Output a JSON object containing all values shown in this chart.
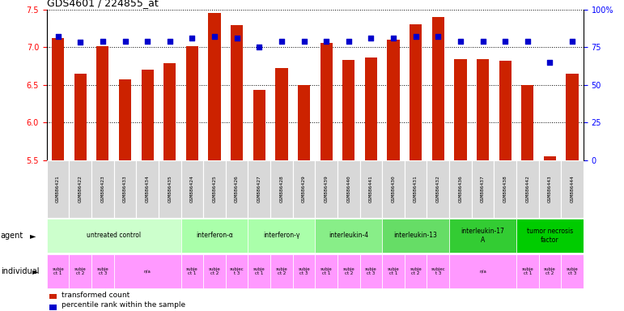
{
  "title": "GDS4601 / 224855_at",
  "samples": [
    "GSM886421",
    "GSM886422",
    "GSM886423",
    "GSM886433",
    "GSM886434",
    "GSM886435",
    "GSM886424",
    "GSM886425",
    "GSM886426",
    "GSM886427",
    "GSM886428",
    "GSM886429",
    "GSM886439",
    "GSM886440",
    "GSM886441",
    "GSM886430",
    "GSM886431",
    "GSM886432",
    "GSM886436",
    "GSM886437",
    "GSM886438",
    "GSM886442",
    "GSM886443",
    "GSM886444"
  ],
  "bar_values": [
    7.12,
    6.65,
    7.01,
    6.57,
    6.7,
    6.79,
    7.01,
    7.45,
    7.29,
    6.43,
    6.72,
    6.5,
    7.05,
    6.83,
    6.86,
    7.1,
    7.3,
    7.4,
    6.84,
    6.84,
    6.82,
    6.5,
    5.55,
    6.65
  ],
  "percentile_values": [
    82,
    78,
    79,
    79,
    79,
    79,
    81,
    82,
    81,
    75,
    79,
    79,
    79,
    79,
    81,
    81,
    82,
    82,
    79,
    79,
    79,
    79,
    65,
    79
  ],
  "bar_color": "#cc2200",
  "dot_color": "#0000cc",
  "ylim_left": [
    5.5,
    7.5
  ],
  "ylim_right": [
    0,
    100
  ],
  "yticks_left": [
    5.5,
    6.0,
    6.5,
    7.0,
    7.5
  ],
  "yticks_right": [
    0,
    25,
    50,
    75,
    100
  ],
  "ytick_labels_right": [
    "0",
    "25",
    "50",
    "75",
    "100%"
  ],
  "groups": [
    {
      "label": "untreated control",
      "start": 0,
      "end": 5,
      "color": "#ccffcc"
    },
    {
      "label": "interferon-α",
      "start": 6,
      "end": 8,
      "color": "#aaffaa"
    },
    {
      "label": "interferon-γ",
      "start": 9,
      "end": 11,
      "color": "#aaffaa"
    },
    {
      "label": "interleukin-4",
      "start": 12,
      "end": 14,
      "color": "#88ee88"
    },
    {
      "label": "interleukin-13",
      "start": 15,
      "end": 17,
      "color": "#66dd66"
    },
    {
      "label": "interleukin-17\nA",
      "start": 18,
      "end": 20,
      "color": "#33cc33"
    },
    {
      "label": "tumor necrosis\nfactor",
      "start": 21,
      "end": 23,
      "color": "#00cc00"
    }
  ],
  "individuals": [
    {
      "label": "subje\nct 1",
      "start": 0,
      "end": 0,
      "color": "#ff99ff"
    },
    {
      "label": "subje\nct 2",
      "start": 1,
      "end": 1,
      "color": "#ff99ff"
    },
    {
      "label": "subje\nct 3",
      "start": 2,
      "end": 2,
      "color": "#ff99ff"
    },
    {
      "label": "n/a",
      "start": 3,
      "end": 5,
      "color": "#ff99ff"
    },
    {
      "label": "subje\nct 1",
      "start": 6,
      "end": 6,
      "color": "#ff99ff"
    },
    {
      "label": "subje\nct 2",
      "start": 7,
      "end": 7,
      "color": "#ff99ff"
    },
    {
      "label": "subjec\nt 3",
      "start": 8,
      "end": 8,
      "color": "#ff99ff"
    },
    {
      "label": "subje\nct 1",
      "start": 9,
      "end": 9,
      "color": "#ff99ff"
    },
    {
      "label": "subje\nct 2",
      "start": 10,
      "end": 10,
      "color": "#ff99ff"
    },
    {
      "label": "subje\nct 3",
      "start": 11,
      "end": 11,
      "color": "#ff99ff"
    },
    {
      "label": "subje\nct 1",
      "start": 12,
      "end": 12,
      "color": "#ff99ff"
    },
    {
      "label": "subje\nct 2",
      "start": 13,
      "end": 13,
      "color": "#ff99ff"
    },
    {
      "label": "subje\nct 3",
      "start": 14,
      "end": 14,
      "color": "#ff99ff"
    },
    {
      "label": "subje\nct 1",
      "start": 15,
      "end": 15,
      "color": "#ff99ff"
    },
    {
      "label": "subje\nct 2",
      "start": 16,
      "end": 16,
      "color": "#ff99ff"
    },
    {
      "label": "subjec\nt 3",
      "start": 17,
      "end": 17,
      "color": "#ff99ff"
    },
    {
      "label": "n/a",
      "start": 18,
      "end": 20,
      "color": "#ff99ff"
    },
    {
      "label": "subje\nct 1",
      "start": 21,
      "end": 21,
      "color": "#ff99ff"
    },
    {
      "label": "subje\nct 2",
      "start": 22,
      "end": 22,
      "color": "#ff99ff"
    },
    {
      "label": "subje\nct 3",
      "start": 23,
      "end": 23,
      "color": "#ff99ff"
    }
  ]
}
